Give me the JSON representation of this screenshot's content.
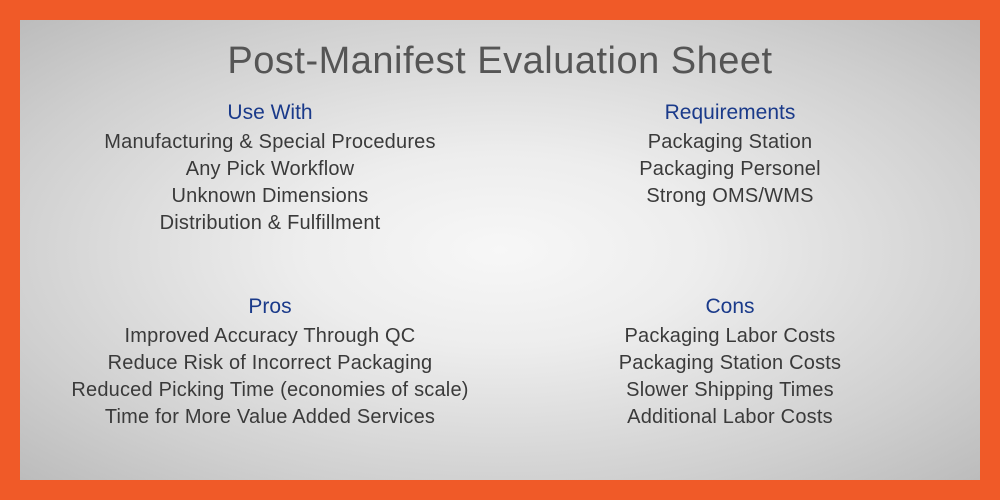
{
  "title": "Post-Manifest Evaluation Sheet",
  "colors": {
    "border": "#f05a28",
    "heading": "#1a3a8a",
    "body_text": "#3a3a3a",
    "title_text": "#555555",
    "bg_center": "#f7f7f7",
    "bg_edge": "#bcbcbc"
  },
  "typography": {
    "title_fontsize": 38,
    "title_weight": 300,
    "heading_fontsize": 21,
    "heading_weight": 500,
    "item_fontsize": 20,
    "item_weight": 400
  },
  "quads": [
    {
      "title": "Use With",
      "items": [
        "Manufacturing & Special Procedures",
        "Any Pick Workflow",
        "Unknown Dimensions",
        "Distribution & Fulfillment"
      ]
    },
    {
      "title": "Requirements",
      "items": [
        "Packaging Station",
        "Packaging Personel",
        "Strong OMS/WMS"
      ]
    },
    {
      "title": "Pros",
      "items": [
        "Improved Accuracy Through QC",
        "Reduce Risk of Incorrect Packaging",
        "Reduced Picking Time (economies of scale)",
        "Time for More Value Added Services"
      ]
    },
    {
      "title": "Cons",
      "items": [
        "Packaging Labor Costs",
        "Packaging Station Costs",
        "Slower Shipping Times",
        "Additional Labor Costs"
      ]
    }
  ]
}
